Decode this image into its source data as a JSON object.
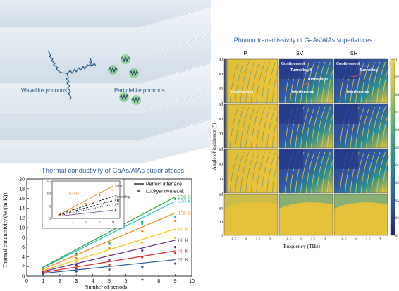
{
  "schematic": {
    "wavelike_label": "Wavelike phonons",
    "particlelike_label": "Particlelike phonons"
  },
  "thermal_conductivity": {
    "title": "Thermal conductivity of GaAs/AlAs superlattices",
    "chart_data": {
      "type": "line",
      "xlabel": "Number of periods",
      "ylabel": "Thermal conductivity (W/(m·K))",
      "xlim": [
        0,
        10
      ],
      "ylim": [
        0,
        20
      ],
      "xticks": [
        "0",
        "1",
        "2",
        "3",
        "4",
        "5",
        "6",
        "7",
        "8",
        "9",
        "10"
      ],
      "yticks": [
        "0",
        "2",
        "4",
        "6",
        "8",
        "10",
        "12",
        "14",
        "16",
        "18",
        "20"
      ],
      "legend": [
        "Perfect interface",
        "Luckyanova et.al."
      ],
      "legend_position": "top-right",
      "series": [
        {
          "name": "296 K",
          "color": "#2ca02c",
          "x": [
            1,
            9
          ],
          "y": [
            1.9,
            16.3
          ],
          "markers_x": [
            1,
            3,
            5,
            7,
            9
          ],
          "markers_y": [
            1.7,
            4.6,
            6.9,
            11.2,
            15.9
          ]
        },
        {
          "name": "250 K",
          "color": "#17becf",
          "x": [
            1,
            9
          ],
          "y": [
            1.8,
            15.4
          ],
          "markers_x": [
            1,
            3,
            5,
            7,
            9
          ],
          "markers_y": [
            1.6,
            4.4,
            6.6,
            10.8,
            12.2
          ]
        },
        {
          "name": "150 K",
          "color": "#ff7f0e",
          "x": [
            1,
            9
          ],
          "y": [
            1.5,
            13.0
          ],
          "markers_x": [
            1,
            3,
            5,
            7,
            9
          ],
          "markers_y": [
            1.3,
            3.7,
            5.8,
            9.3,
            11.4
          ]
        },
        {
          "name": "80 K",
          "color": "#ffc000",
          "x": [
            1,
            9
          ],
          "y": [
            1.2,
            9.7
          ],
          "markers_x": [
            1,
            3,
            5,
            7,
            9
          ],
          "markers_y": [
            1.1,
            3.0,
            4.4,
            6.8,
            7.9
          ]
        },
        {
          "name": "60 K",
          "color": "#5b2c8f",
          "x": [
            1,
            9
          ],
          "y": [
            1.0,
            7.4
          ],
          "markers_x": [
            1,
            3,
            5,
            7,
            9
          ],
          "markers_y": [
            0.9,
            2.3,
            3.3,
            5.3,
            6.0
          ]
        },
        {
          "name": "40 K",
          "color": "#d62728",
          "x": [
            1,
            9
          ],
          "y": [
            0.8,
            5.2
          ],
          "markers_x": [
            1,
            3,
            5,
            7,
            9
          ],
          "markers_y": [
            0.6,
            1.6,
            2.3,
            3.9,
            4.7
          ]
        },
        {
          "name": "30 K",
          "color": "#2d5aa0",
          "x": [
            1,
            9
          ],
          "y": [
            0.6,
            3.4
          ],
          "markers_x": [
            1,
            3,
            5,
            7,
            9
          ],
          "markers_y": [
            0.4,
            1.0,
            1.4,
            1.9,
            2.6
          ]
        }
      ],
      "inset": {
        "xlim": [
          0,
          10
        ],
        "ylim": [
          0,
          15
        ],
        "xticks": [
          "1",
          "3",
          "5",
          "7",
          "9"
        ],
        "yticks": [
          "0",
          "5",
          "10",
          "15"
        ],
        "temperature_label": "150 K",
        "lines": [
          {
            "name": "Total",
            "style": "solid",
            "color": "#ff7f0e",
            "x": [
              1,
              9
            ],
            "y": [
              1.5,
              13.0
            ]
          },
          {
            "name": "Tunneling",
            "style": "dashed",
            "color": "#000000",
            "x": [
              1,
              9
            ],
            "y": [
              1.5,
              8.9
            ]
          },
          {
            "name": "SH",
            "style": "dashed",
            "color": "#000000",
            "x": [
              1,
              9
            ],
            "y": [
              1.3,
              7.2
            ]
          },
          {
            "name": "SV",
            "style": "dotted",
            "color": "#000000",
            "x": [
              1,
              9
            ],
            "y": [
              1.1,
              5.7
            ]
          },
          {
            "name": "P",
            "style": "solid",
            "color": "#7a4fa3",
            "x": [
              1,
              9
            ],
            "y": [
              0.9,
              3.3
            ]
          }
        ],
        "markers_x": [
          1,
          3,
          5,
          7,
          9
        ],
        "markers_y": [
          1.3,
          3.7,
          5.8,
          9.3,
          11.4
        ]
      }
    }
  },
  "transmissivity": {
    "title": "Phonon transmissivity of GaAs/AlAs superlattices",
    "column_labels": [
      "P",
      "SV",
      "SH"
    ],
    "ylabel": "Angle of incidence (°)",
    "xlabel": "Frequency (THz)",
    "yticks": [
      "0",
      "30",
      "60",
      "90"
    ],
    "xticks": [
      "0.5",
      "1",
      "1.5",
      "2"
    ],
    "colorbar_ticks": [
      "0",
      "0.1",
      "0.2",
      "0.3",
      "0.4",
      "0.5",
      "0.6",
      "0.7",
      "0.8",
      "0.9",
      "1"
    ],
    "annotations": {
      "p_interference": "Interference",
      "sv_confinement": "Confinement",
      "sv_tunneling_ii": "Tunneling II",
      "sv_tunneling_i": "Tunneling I",
      "sv_interference": "Interference",
      "sh_confinement": "Confinement",
      "sh_tunneling": "Tunneling",
      "sh_interference": "Interference"
    },
    "colors": {
      "high": "#e8c53a",
      "mid": "#2ea28a",
      "low": "#283a8c"
    }
  }
}
